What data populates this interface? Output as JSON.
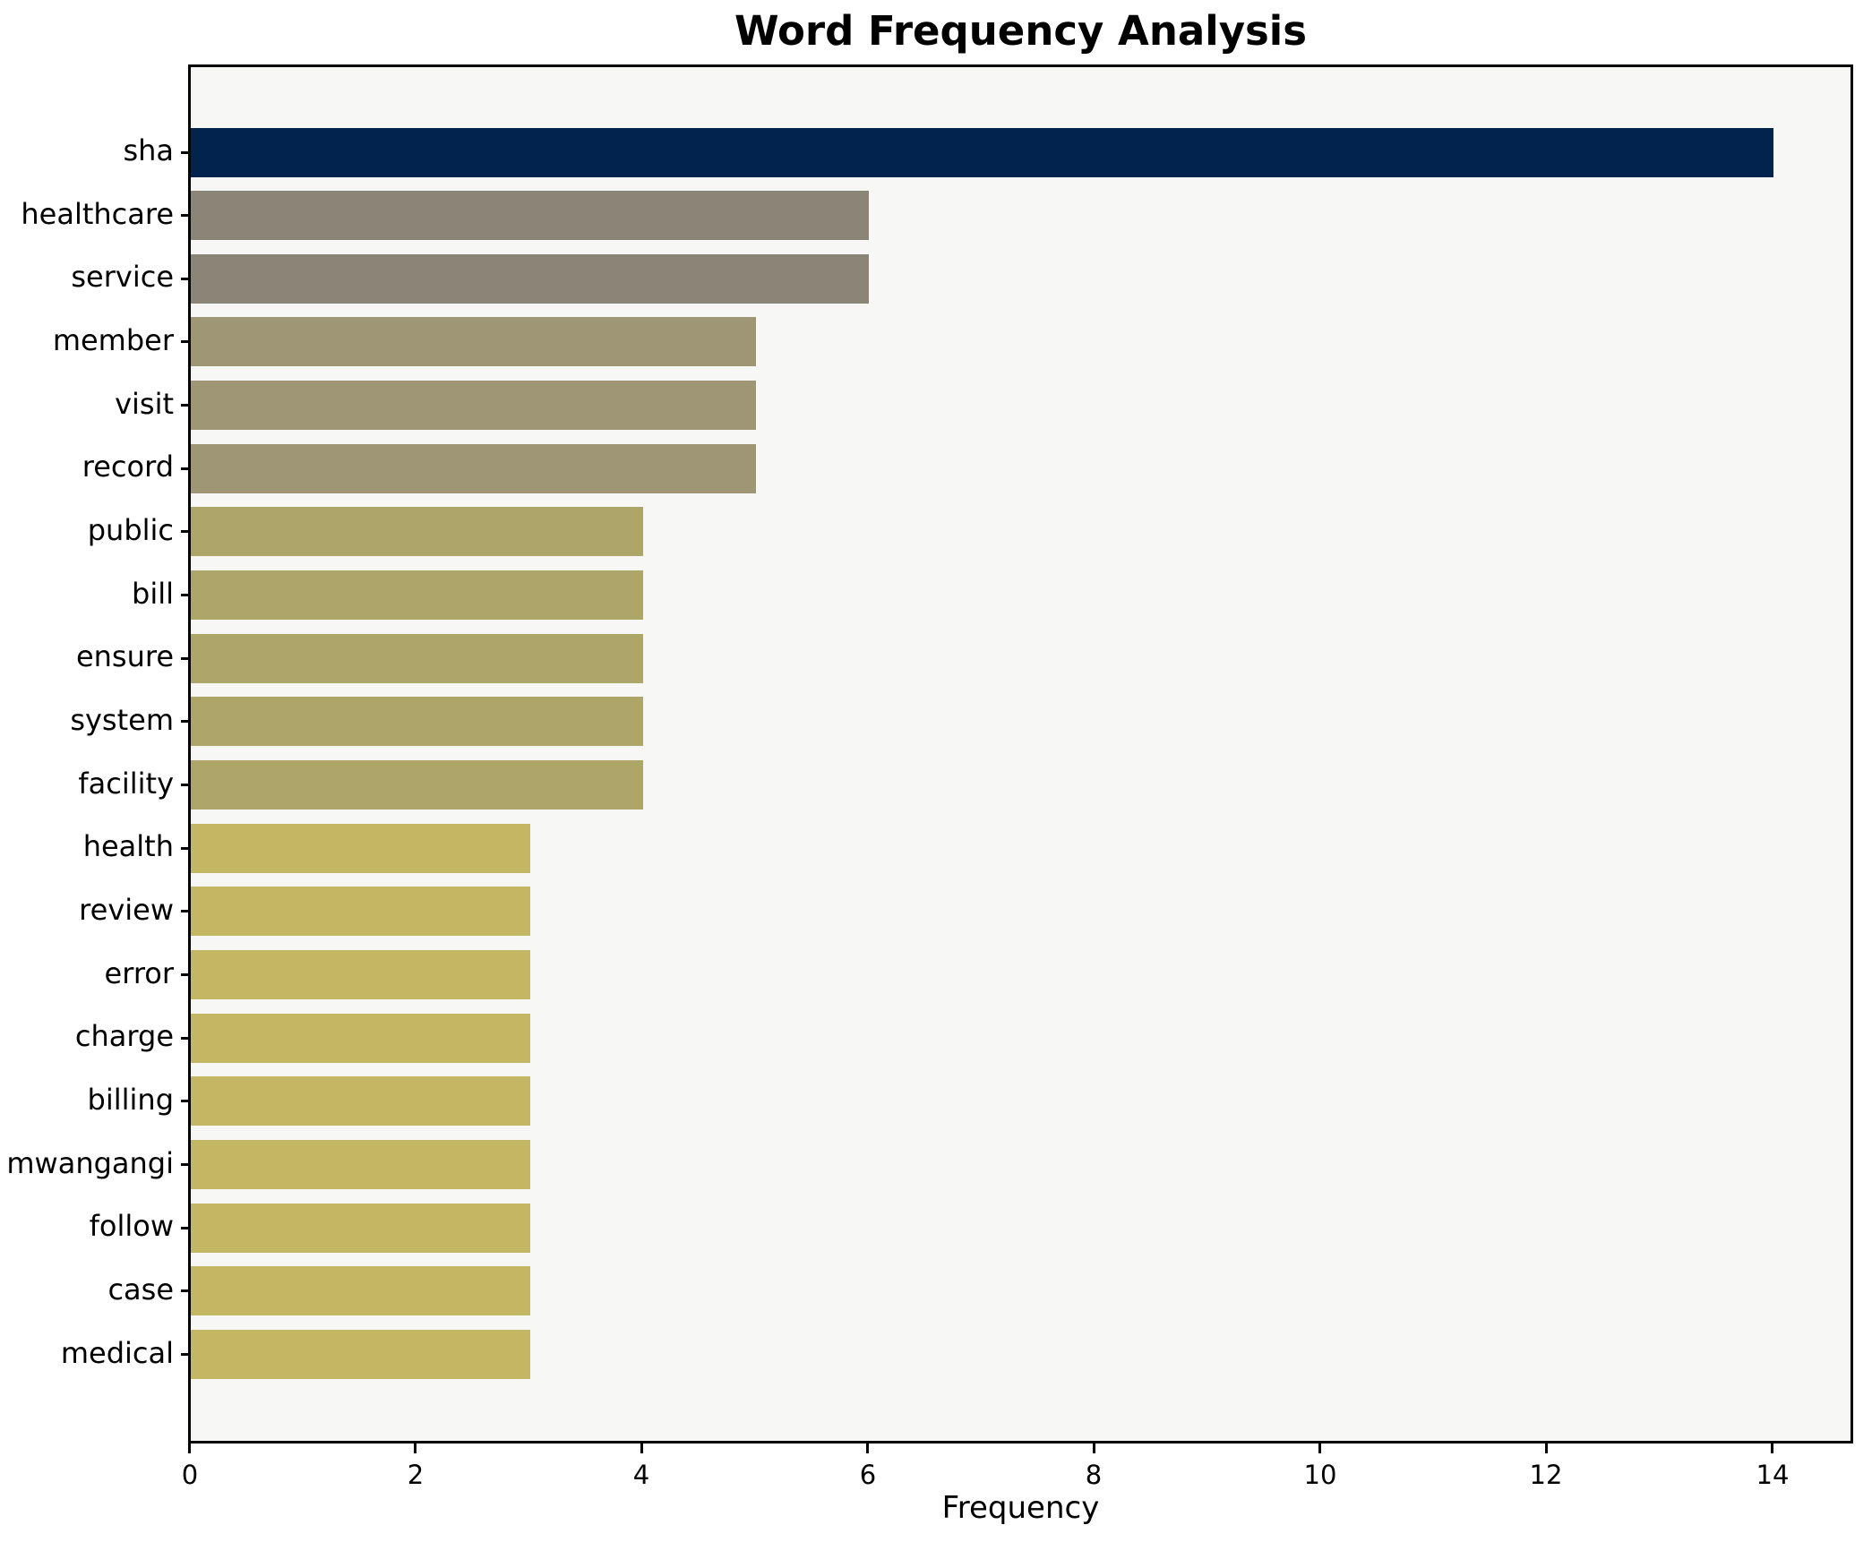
{
  "chart_data": {
    "type": "bar",
    "orientation": "horizontal",
    "title": "Word Frequency Analysis",
    "xlabel": "Frequency",
    "ylabel": "",
    "categories": [
      "sha",
      "healthcare",
      "service",
      "member",
      "visit",
      "record",
      "public",
      "bill",
      "ensure",
      "system",
      "facility",
      "health",
      "review",
      "error",
      "charge",
      "billing",
      "mwangangi",
      "follow",
      "case",
      "medical"
    ],
    "values": [
      14,
      6,
      6,
      5,
      5,
      5,
      4,
      4,
      4,
      4,
      4,
      3,
      3,
      3,
      3,
      3,
      3,
      3,
      3,
      3
    ],
    "bar_colors": [
      "#02234d",
      "#8b8577",
      "#8b8577",
      "#9e9674",
      "#9e9674",
      "#9e9674",
      "#aea568",
      "#aea568",
      "#aea568",
      "#aea568",
      "#aea568",
      "#c4b763",
      "#c4b763",
      "#c4b763",
      "#c4b763",
      "#c4b763",
      "#c4b763",
      "#c4b763",
      "#c4b763",
      "#c4b763"
    ],
    "xticks": [
      0,
      2,
      4,
      6,
      8,
      10,
      12,
      14
    ],
    "xlim": [
      0,
      14.68
    ],
    "grid": false,
    "legend": null,
    "plot_background": "#f7f7f6",
    "figure_background": "#ffffff",
    "spine_color": "#000000",
    "bar_height_fraction": 0.78
  }
}
